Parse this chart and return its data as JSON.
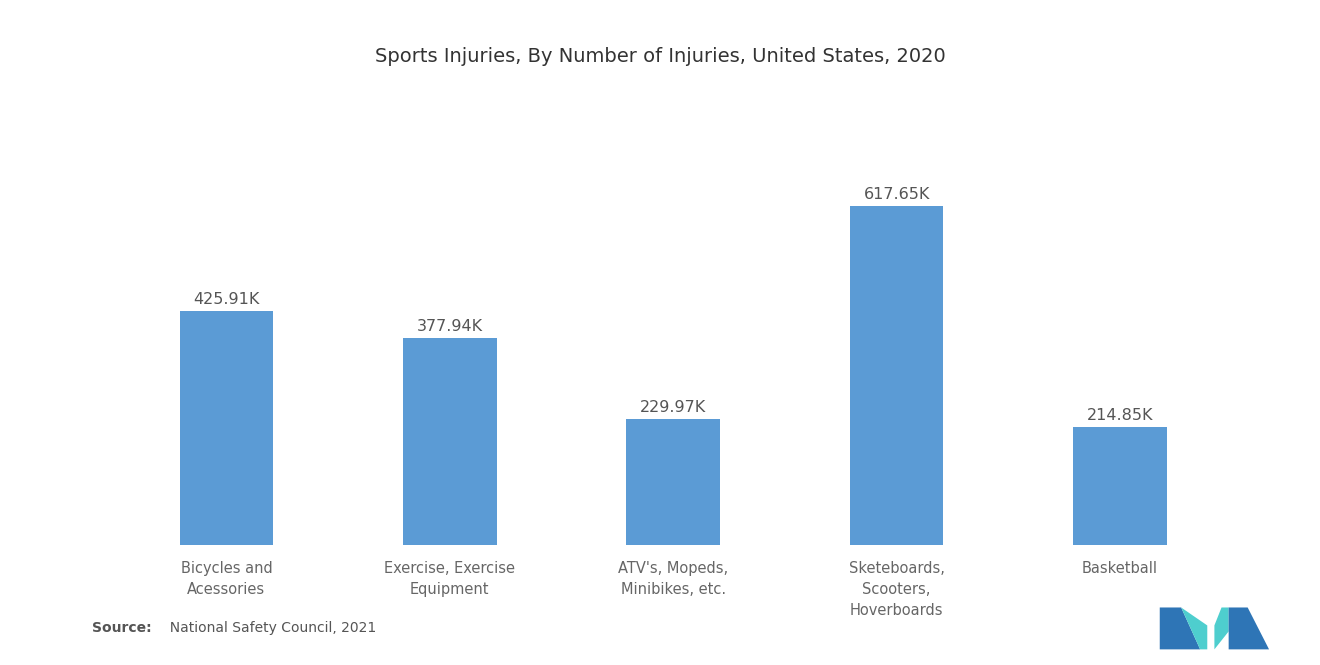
{
  "title": "Sports Injuries, By Number of Injuries, United States, 2020",
  "categories": [
    "Bicycles and\nAcessories",
    "Exercise, Exercise\nEquipment",
    "ATV's, Mopeds,\nMinibikes, etc.",
    "Sketeboards,\nScooters,\nHoverboards",
    "Basketball"
  ],
  "values": [
    425.91,
    377.94,
    229.97,
    617.65,
    214.85
  ],
  "labels": [
    "425.91K",
    "377.94K",
    "229.97K",
    "617.65K",
    "214.85K"
  ],
  "bar_color": "#5B9BD5",
  "background_color": "#FFFFFF",
  "title_fontsize": 14,
  "label_fontsize": 11.5,
  "tick_fontsize": 10.5,
  "source_bold": "Source:",
  "source_rest": "  National Safety Council, 2021",
  "ylim": [
    0,
    750
  ],
  "teal_color": "#3EC8C8",
  "dark_blue_color": "#2E75B6",
  "logo_teal": "#4CC9C9",
  "logo_blue": "#2B6CB8"
}
